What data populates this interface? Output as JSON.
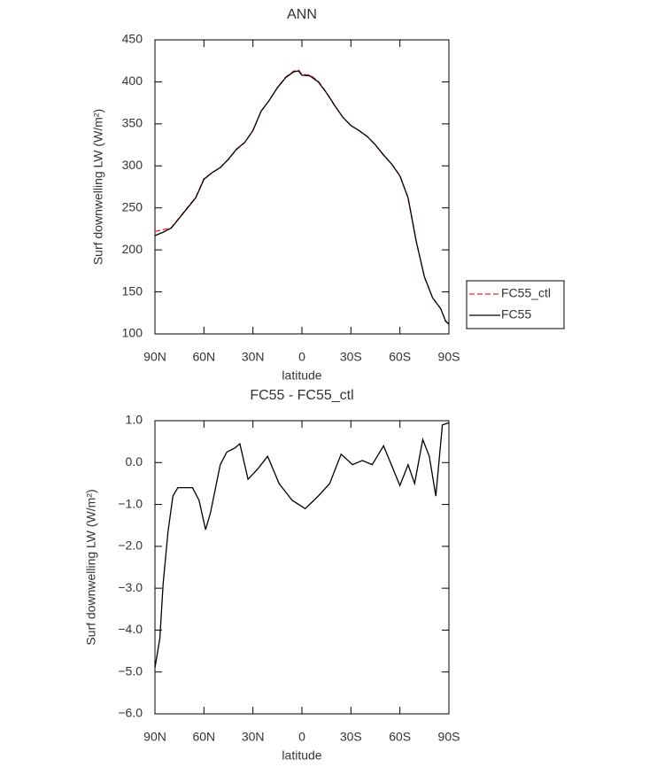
{
  "chart_data": [
    {
      "type": "line",
      "title": "ANN",
      "xlabel": "latitude",
      "ylabel": "Surf downwelling LW (W/m²)",
      "x": [
        90,
        85,
        80,
        75,
        70,
        65,
        60,
        55,
        50,
        45,
        40,
        35,
        30,
        25,
        20,
        15,
        10,
        5,
        2,
        0,
        -5,
        -10,
        -15,
        -20,
        -25,
        -30,
        -35,
        -40,
        -45,
        -50,
        -55,
        -60,
        -65,
        -70,
        -75,
        -80,
        -85,
        -88,
        -90
      ],
      "series": [
        {
          "name": "FC55_ctl",
          "color": "#e8262b",
          "dash": true,
          "values": [
            222,
            224,
            226.5,
            238.6,
            250.6,
            262.6,
            285,
            291.7,
            298,
            307.7,
            319.6,
            327.7,
            342.4,
            365.2,
            377.9,
            393.4,
            405.6,
            412.8,
            413.9,
            409,
            408.2,
            400.8,
            387.5,
            372.4,
            357.9,
            348.1,
            342,
            335,
            325,
            312.6,
            302.2,
            288.6,
            262.3,
            210.4,
            167.7,
            143,
            129.8,
            115.5,
            111
          ]
        },
        {
          "name": "FC55",
          "color": "#000000",
          "dash": false,
          "values": [
            217,
            221,
            226,
            238,
            250,
            262,
            284,
            292,
            298,
            308,
            320,
            328,
            342,
            365,
            378,
            393,
            405,
            412,
            413,
            408,
            407,
            400,
            387,
            372,
            358,
            348,
            342,
            335,
            325,
            313,
            302,
            288,
            262,
            210,
            168,
            143,
            130,
            115,
            112
          ]
        }
      ],
      "xlim": [
        90,
        -90
      ],
      "xticks": [
        {
          "value": 90,
          "label": "90N"
        },
        {
          "value": 60,
          "label": "60N"
        },
        {
          "value": 30,
          "label": "30N"
        },
        0,
        {
          "value": -30,
          "label": "30S"
        },
        {
          "value": -60,
          "label": "60S"
        },
        {
          "value": -90,
          "label": "90S"
        }
      ],
      "ylim": [
        100,
        450
      ],
      "yticks": [
        100,
        150,
        200,
        250,
        300,
        350,
        400,
        450
      ],
      "legend": "right"
    },
    {
      "type": "line",
      "title": "FC55 - FC55_ctl",
      "xlabel": "latitude",
      "ylabel": "Surf downwelling LW (W/m²)",
      "x": [
        90,
        87,
        85,
        82,
        79,
        76,
        71,
        67,
        63,
        59,
        56,
        50,
        46,
        41,
        38,
        33,
        27,
        21,
        14,
        6,
        -2,
        -10,
        -17,
        -24,
        -31,
        -37,
        -43,
        -50,
        -60,
        -65,
        -69,
        -74,
        -78,
        -82,
        -86,
        -90
      ],
      "series": [
        {
          "name": "FC55 - FC55_ctl",
          "color": "#000000",
          "dash": false,
          "values": [
            -4.9,
            -4.2,
            -2.9,
            -1.65,
            -0.8,
            -0.6,
            -0.6,
            -0.6,
            -0.9,
            -1.6,
            -1.2,
            -0.05,
            0.25,
            0.35,
            0.45,
            -0.4,
            -0.15,
            0.15,
            -0.5,
            -0.9,
            -1.1,
            -0.8,
            -0.5,
            0.2,
            -0.05,
            0.05,
            -0.05,
            0.4,
            -0.55,
            -0.05,
            -0.5,
            0.55,
            0.15,
            -0.8,
            0.9,
            0.95
          ]
        }
      ],
      "xlim": [
        90,
        -90
      ],
      "xticks": [
        {
          "value": 90,
          "label": "90N"
        },
        {
          "value": 60,
          "label": "60N"
        },
        {
          "value": 30,
          "label": "30N"
        },
        0,
        {
          "value": -30,
          "label": "30S"
        },
        {
          "value": -60,
          "label": "60S"
        },
        {
          "value": -90,
          "label": "90S"
        }
      ],
      "ylim": [
        -6,
        1
      ],
      "yticks": [
        {
          "value": -6,
          "label": "−6.0"
        },
        {
          "value": -5,
          "label": "−5.0"
        },
        {
          "value": -4,
          "label": "−4.0"
        },
        {
          "value": -3,
          "label": "−3.0"
        },
        {
          "value": -2,
          "label": "−2.0"
        },
        {
          "value": -1,
          "label": "−1.0"
        },
        {
          "value": 0,
          "label": "0.0"
        },
        {
          "value": 1,
          "label": "1.0"
        }
      ]
    }
  ]
}
